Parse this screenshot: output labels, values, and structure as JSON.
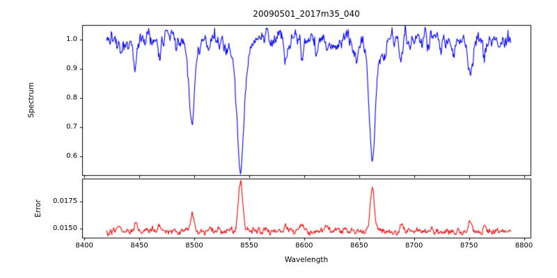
{
  "chart_data": {
    "type": "line",
    "title": "20090501_2017m35_040",
    "xlabel": "Wavelength",
    "xlim": [
      8398,
      8806
    ],
    "xticks": [
      8400,
      8450,
      8500,
      8550,
      8600,
      8650,
      8700,
      8750,
      8800
    ],
    "xtick_labels": [
      "8400",
      "8450",
      "8500",
      "8550",
      "8600",
      "8650",
      "8700",
      "8750",
      "8800"
    ],
    "x_data_range": [
      8420,
      8788
    ],
    "sample_step": 0.5,
    "legend": "none",
    "grid": false,
    "panels": [
      {
        "name": "spectrum",
        "ylabel": "Spectrum",
        "color": "#0000ff",
        "ylim": [
          0.535,
          1.05
        ],
        "yticks": [
          0.6,
          0.7,
          0.8,
          0.9,
          1.0
        ],
        "ytick_labels": [
          "0.6",
          "0.7",
          "0.8",
          "0.9",
          "1.0"
        ],
        "continuum": 1.0,
        "noise": {
          "ar": 0.72,
          "sigma": 0.0125,
          "seed": 20090501
        },
        "absorption_lines": [
          {
            "center": 8433,
            "depth": 0.045,
            "sigma": 1.0
          },
          {
            "center": 8446,
            "depth": 0.105,
            "sigma": 1.3
          },
          {
            "center": 8468,
            "depth": 0.05,
            "sigma": 1.2
          },
          {
            "center": 8498,
            "depth": 0.25,
            "sigma": 2.2,
            "wing": 0.05,
            "wing_sigma": 6
          },
          {
            "center": 8514,
            "depth": 0.05,
            "sigma": 1.2
          },
          {
            "center": 8542,
            "depth": 0.38,
            "sigma": 3.0,
            "wing": 0.07,
            "wing_sigma": 8
          },
          {
            "center": 8583,
            "depth": 0.06,
            "sigma": 1.3
          },
          {
            "center": 8598,
            "depth": 0.06,
            "sigma": 1.2
          },
          {
            "center": 8611,
            "depth": 0.04,
            "sigma": 1.0
          },
          {
            "center": 8621,
            "depth": 0.05,
            "sigma": 1.2
          },
          {
            "center": 8648,
            "depth": 0.05,
            "sigma": 1.2
          },
          {
            "center": 8662,
            "depth": 0.36,
            "sigma": 2.6,
            "wing": 0.06,
            "wing_sigma": 7
          },
          {
            "center": 8674,
            "depth": 0.06,
            "sigma": 1.2
          },
          {
            "center": 8688,
            "depth": 0.08,
            "sigma": 1.5
          },
          {
            "center": 8713,
            "depth": 0.045,
            "sigma": 1.2
          },
          {
            "center": 8736,
            "depth": 0.05,
            "sigma": 1.2
          },
          {
            "center": 8751,
            "depth": 0.13,
            "sigma": 2.0
          },
          {
            "center": 8764,
            "depth": 0.05,
            "sigma": 1.2
          }
        ]
      },
      {
        "name": "error",
        "ylabel": "Error",
        "color": "#ff0000",
        "ylim": [
          0.0142,
          0.0196
        ],
        "yticks": [
          0.015,
          0.0175
        ],
        "ytick_labels": [
          "0.0150",
          "0.0175"
        ],
        "base": 0.0148,
        "noise": {
          "ar": 0.6,
          "sigma": 0.00013,
          "seed": 40
        },
        "peaks": [
          {
            "center": 8431,
            "amp": 0.0006,
            "sigma": 1.2
          },
          {
            "center": 8446,
            "amp": 0.0007,
            "sigma": 1.3
          },
          {
            "center": 8468,
            "amp": 0.0006,
            "sigma": 1.2
          },
          {
            "center": 8498,
            "amp": 0.0016,
            "sigma": 1.8
          },
          {
            "center": 8514,
            "amp": 0.0004,
            "sigma": 1.2
          },
          {
            "center": 8542,
            "amp": 0.0043,
            "sigma": 2.0
          },
          {
            "center": 8583,
            "amp": 0.0005,
            "sigma": 1.3
          },
          {
            "center": 8598,
            "amp": 0.0007,
            "sigma": 1.5
          },
          {
            "center": 8621,
            "amp": 0.0004,
            "sigma": 1.2
          },
          {
            "center": 8662,
            "amp": 0.0041,
            "sigma": 1.8
          },
          {
            "center": 8688,
            "amp": 0.0006,
            "sigma": 1.4
          },
          {
            "center": 8751,
            "amp": 0.0008,
            "sigma": 1.6
          },
          {
            "center": 8764,
            "amp": 0.0005,
            "sigma": 1.2
          }
        ]
      }
    ]
  }
}
